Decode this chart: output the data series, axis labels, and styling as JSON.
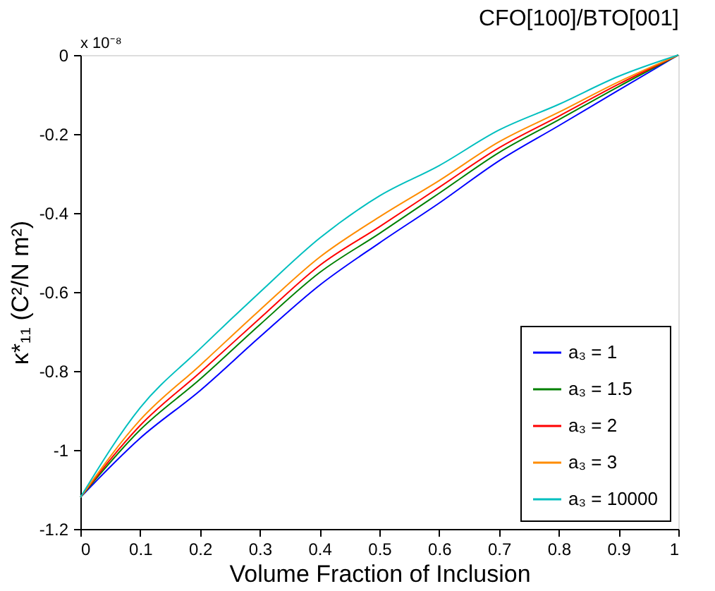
{
  "chart_data": {
    "type": "line",
    "title": "CFO[100]/BTO[001]",
    "xlabel": "Volume Fraction of Inclusion",
    "ylabel": "κ*₁₁ (C²/N m²)",
    "annotations": [
      "x 10⁻⁸"
    ],
    "x": [
      0,
      0.1,
      0.2,
      0.3,
      0.4,
      0.5,
      0.6,
      0.7,
      0.8,
      0.9,
      1
    ],
    "series": [
      {
        "name": "a₃ = 1",
        "color": "#0000ff",
        "values": [
          -1.12,
          -0.97,
          -0.85,
          -0.714,
          -0.583,
          -0.476,
          -0.375,
          -0.268,
          -0.179,
          -0.089,
          0
        ]
      },
      {
        "name": "a₃ = 1.5",
        "color": "#008000",
        "values": [
          -1.12,
          -0.949,
          -0.821,
          -0.683,
          -0.551,
          -0.452,
          -0.35,
          -0.247,
          -0.164,
          -0.08,
          0
        ]
      },
      {
        "name": "a₃ = 2",
        "color": "#ff0000",
        "values": [
          -1.12,
          -0.938,
          -0.804,
          -0.667,
          -0.533,
          -0.435,
          -0.335,
          -0.235,
          -0.155,
          -0.074,
          0
        ]
      },
      {
        "name": "a₃ = 3",
        "color": "#ff8c00",
        "values": [
          -1.12,
          -0.924,
          -0.786,
          -0.646,
          -0.512,
          -0.41,
          -0.318,
          -0.22,
          -0.145,
          -0.068,
          0
        ]
      },
      {
        "name": "a₃ = 10000",
        "color": "#00bfbf",
        "values": [
          -1.12,
          -0.893,
          -0.744,
          -0.601,
          -0.464,
          -0.357,
          -0.28,
          -0.19,
          -0.125,
          -0.054,
          0
        ]
      }
    ],
    "xlim": [
      0,
      1
    ],
    "xticks": [
      0,
      0.1,
      0.2,
      0.3,
      0.4,
      0.5,
      0.6,
      0.7,
      0.8,
      0.9,
      1
    ],
    "ylim": [
      -1.2,
      0
    ],
    "yticks": [
      -1.2,
      -1,
      -0.8,
      -0.6,
      -0.4,
      -0.2,
      0
    ],
    "grid": false,
    "legend": "bottom right",
    "marker": "none",
    "line_style": "solid"
  }
}
